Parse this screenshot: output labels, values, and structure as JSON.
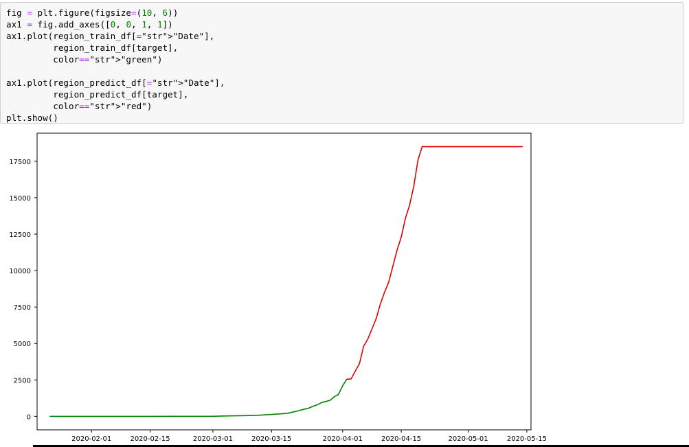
{
  "code_lines": [
    "fig = plt.figure(figsize=(10, 6))",
    "ax1 = fig.add_axes([0, 0, 1, 1])",
    "ax1.plot(region_train_df[\"Date\"],",
    "         region_train_df[target],",
    "         color=\"green\")",
    "",
    "ax1.plot(region_predict_df[\"Date\"],",
    "         region_predict_df[target],",
    "         color=\"red\")",
    "plt.show()"
  ],
  "chart_data": {
    "type": "line",
    "title": "",
    "xlabel": "",
    "ylabel": "",
    "x_axis_kind": "date",
    "xlim": [
      "2020-01-19",
      "2020-05-16"
    ],
    "ylim": [
      -925,
      19425
    ],
    "x_ticks": [
      "2020-02-01",
      "2020-02-15",
      "2020-03-01",
      "2020-03-15",
      "2020-04-01",
      "2020-04-15",
      "2020-05-01",
      "2020-05-15"
    ],
    "y_ticks": [
      0,
      2500,
      5000,
      7500,
      10000,
      12500,
      15000,
      17500
    ],
    "grid": false,
    "legend": "none",
    "series": [
      {
        "color": "#008000",
        "points": [
          [
            "2020-01-22",
            0
          ],
          [
            "2020-02-01",
            0
          ],
          [
            "2020-02-15",
            0
          ],
          [
            "2020-03-01",
            2
          ],
          [
            "2020-03-03",
            20
          ],
          [
            "2020-03-06",
            35
          ],
          [
            "2020-03-09",
            50
          ],
          [
            "2020-03-12",
            80
          ],
          [
            "2020-03-15",
            130
          ],
          [
            "2020-03-17",
            170
          ],
          [
            "2020-03-19",
            220
          ],
          [
            "2020-03-21",
            350
          ],
          [
            "2020-03-23",
            500
          ],
          [
            "2020-03-24",
            580
          ],
          [
            "2020-03-25",
            700
          ],
          [
            "2020-03-26",
            800
          ],
          [
            "2020-03-27",
            950
          ],
          [
            "2020-03-28",
            1020
          ],
          [
            "2020-03-29",
            1100
          ],
          [
            "2020-03-30",
            1350
          ],
          [
            "2020-03-31",
            1500
          ],
          [
            "2020-04-01",
            2100
          ],
          [
            "2020-04-02",
            2550
          ]
        ]
      },
      {
        "color": "#e00000",
        "points": [
          [
            "2020-04-02",
            2550
          ],
          [
            "2020-04-03",
            2560
          ],
          [
            "2020-04-04",
            3100
          ],
          [
            "2020-04-05",
            3600
          ],
          [
            "2020-04-06",
            4800
          ],
          [
            "2020-04-07",
            5300
          ],
          [
            "2020-04-08",
            6000
          ],
          [
            "2020-04-09",
            6700
          ],
          [
            "2020-04-10",
            7700
          ],
          [
            "2020-04-11",
            8500
          ],
          [
            "2020-04-12",
            9200
          ],
          [
            "2020-04-13",
            10300
          ],
          [
            "2020-04-14",
            11400
          ],
          [
            "2020-04-15",
            12300
          ],
          [
            "2020-04-16",
            13600
          ],
          [
            "2020-04-17",
            14500
          ],
          [
            "2020-04-18",
            15800
          ],
          [
            "2020-04-19",
            17600
          ],
          [
            "2020-04-20",
            18500
          ],
          [
            "2020-04-25",
            18500
          ],
          [
            "2020-05-01",
            18500
          ],
          [
            "2020-05-08",
            18500
          ],
          [
            "2020-05-14",
            18500
          ]
        ]
      }
    ]
  }
}
